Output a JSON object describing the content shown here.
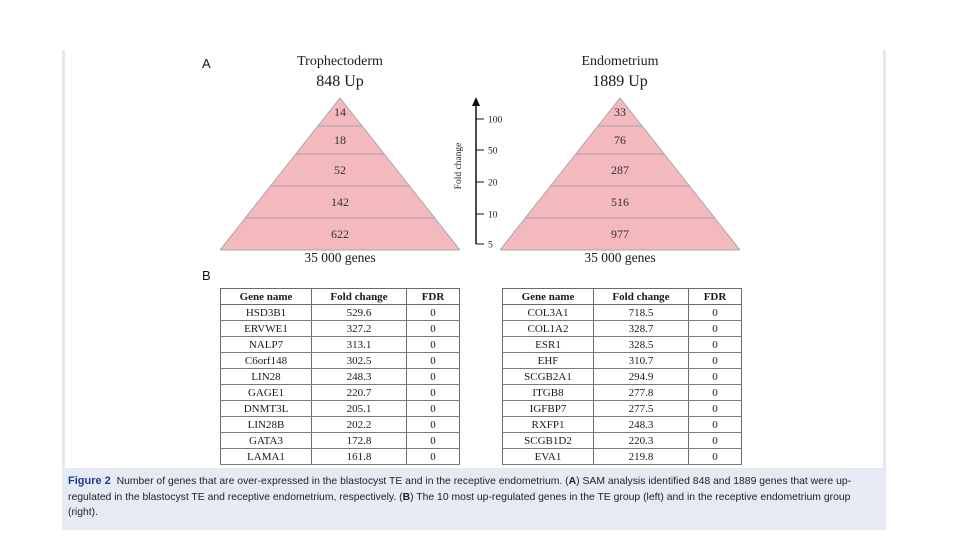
{
  "figure": {
    "panel_a_label": "A",
    "panel_b_label": "B"
  },
  "pyramids": [
    {
      "title": "Trophectoderm",
      "subtitle": "848 Up",
      "total": "35 000 genes",
      "tiers": [
        "14",
        "18",
        "52",
        "142",
        "622"
      ]
    },
    {
      "title": "Endometrium",
      "subtitle": "1889 Up",
      "total": "35 000 genes",
      "tiers": [
        "33",
        "76",
        "287",
        "516",
        "977"
      ]
    }
  ],
  "axis": {
    "label": "Fold change",
    "ticks": [
      "100",
      "50",
      "20",
      "10",
      "5"
    ]
  },
  "tables": [
    {
      "headers": [
        "Gene name",
        "Fold change",
        "FDR"
      ],
      "rows": [
        [
          "HSD3B1",
          "529.6",
          "0"
        ],
        [
          "ERVWE1",
          "327.2",
          "0"
        ],
        [
          "NALP7",
          "313.1",
          "0"
        ],
        [
          "C6orf148",
          "302.5",
          "0"
        ],
        [
          "LIN28",
          "248.3",
          "0"
        ],
        [
          "GAGE1",
          "220.7",
          "0"
        ],
        [
          "DNMT3L",
          "205.1",
          "0"
        ],
        [
          "LIN28B",
          "202.2",
          "0"
        ],
        [
          "GATA3",
          "172.8",
          "0"
        ],
        [
          "LAMA1",
          "161.8",
          "0"
        ]
      ]
    },
    {
      "headers": [
        "Gene name",
        "Fold change",
        "FDR"
      ],
      "rows": [
        [
          "COL3A1",
          "718.5",
          "0"
        ],
        [
          "COL1A2",
          "328.7",
          "0"
        ],
        [
          "ESR1",
          "328.5",
          "0"
        ],
        [
          "EHF",
          "310.7",
          "0"
        ],
        [
          "SCGB2A1",
          "294.9",
          "0"
        ],
        [
          "ITGB8",
          "277.8",
          "0"
        ],
        [
          "IGFBP7",
          "277.5",
          "0"
        ],
        [
          "RXFP1",
          "248.3",
          "0"
        ],
        [
          "SCGB1D2",
          "220.3",
          "0"
        ],
        [
          "EVA1",
          "219.8",
          "0"
        ]
      ]
    }
  ],
  "caption": {
    "fig_label": "Figure 2",
    "t1": "Number of genes that are over-expressed in the blastocyst TE and in the receptive endometrium. (",
    "a": "A",
    "t2": ") SAM analysis identified 848 and 1889 genes that were up-regulated in the blastocyst TE and receptive endometrium, respectively. (",
    "b": "B",
    "t3": ") The 10 most up-regulated genes in the TE group (left) and in the receptive endometrium group (right)."
  },
  "colors": {
    "tier_fill": "#f4b8bf",
    "tier_stroke": "#a8a8a8",
    "caption_bg": "#e6ebf3",
    "figure_label": "#1a3d8f"
  }
}
